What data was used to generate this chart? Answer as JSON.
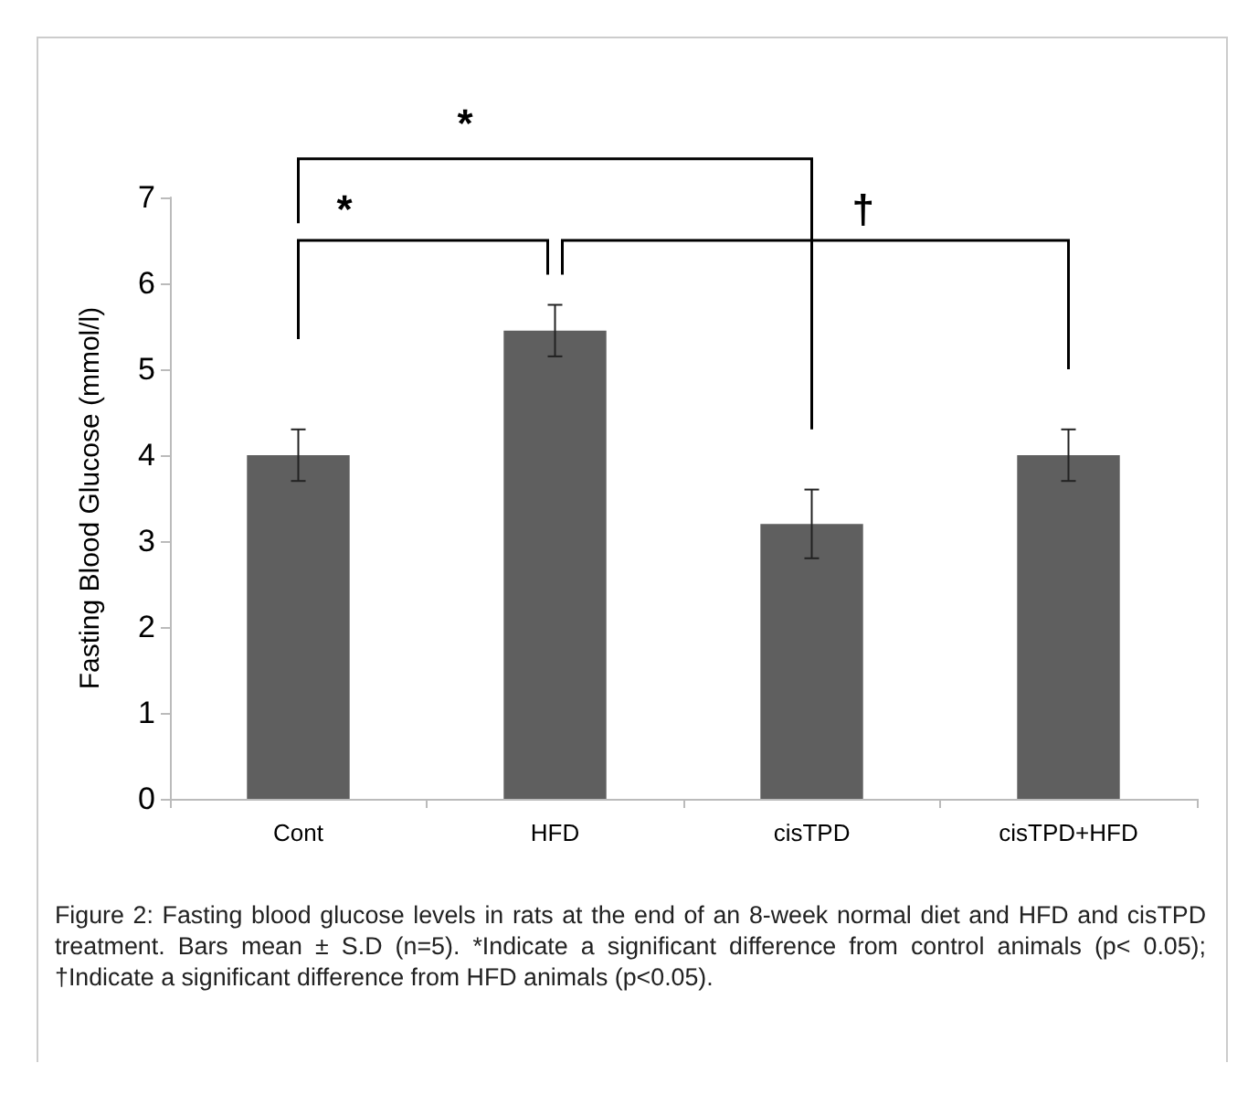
{
  "chart_data": {
    "type": "bar",
    "ylabel": "Fasting Blood Glucose (mmol/l)",
    "categories": [
      "Cont",
      "HFD",
      "cisTPD",
      "cisTPD+HFD"
    ],
    "values": [
      4.0,
      5.45,
      3.2,
      4.0
    ],
    "errors": [
      0.3,
      0.3,
      0.4,
      0.3
    ],
    "color": "#5f5f5f",
    "ylim": [
      0,
      7
    ],
    "yticks": [
      0,
      1,
      2,
      3,
      4,
      5,
      6,
      7
    ],
    "grid": false,
    "annotations": [
      "*",
      "*",
      "†",
      "Figure 2: Fasting blood glucose levels in rats at the end of an 8-week normal diet and HFD and cisTPD treatment. Bars mean ± S.D (n=5). *Indicate a significant difference from control animals (p< 0.05); †Indicate a significant difference from HFD animals (p<0.05)."
    ]
  }
}
